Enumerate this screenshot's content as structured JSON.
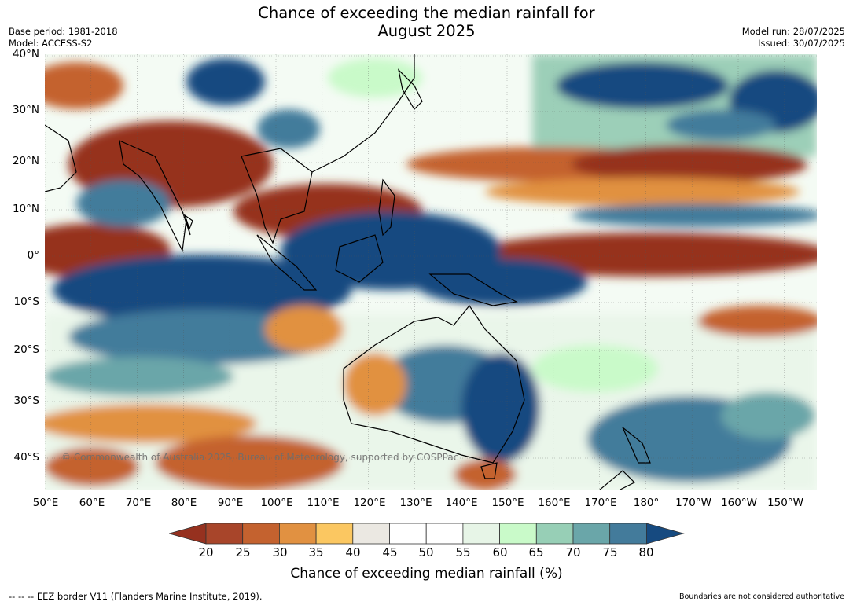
{
  "title_line1": "Chance of exceeding the median rainfall for",
  "title_line2": "August 2025",
  "meta_left": [
    "Base period: 1981-2018",
    "Model: ACCESS-S2"
  ],
  "meta_right": [
    "Model run: 28/07/2025",
    "Issued: 30/07/2025"
  ],
  "lat_ticks": [
    "40°N",
    "30°N",
    "20°N",
    "10°N",
    "0°",
    "10°S",
    "20°S",
    "30°S",
    "40°S"
  ],
  "lon_ticks": [
    "50°E",
    "60°E",
    "70°E",
    "80°E",
    "90°E",
    "100°E",
    "110°E",
    "120°E",
    "130°E",
    "140°E",
    "150°E",
    "160°E",
    "170°E",
    "180°",
    "170°W",
    "160°W",
    "150°W"
  ],
  "colorbar": {
    "ticks": [
      "20",
      "25",
      "30",
      "35",
      "40",
      "45",
      "50",
      "55",
      "60",
      "65",
      "70",
      "75",
      "80"
    ],
    "colors": [
      "#96311f",
      "#a8452a",
      "#c4622f",
      "#e19141",
      "#fbc761",
      "#ebe8e2",
      "#ffffff",
      "#ffffff",
      "#e7f5e7",
      "#c9fac9",
      "#97cfb6",
      "#6aa6a9",
      "#437b9b",
      "#164a80"
    ],
    "label": "Chance of exceeding median rainfall (%)"
  },
  "copyright": "© Commonwealth of Australia 2025, Bureau of Meteorology, supported by COSPPac",
  "eez_note": "--  --  -- EEZ border V11 (Flanders Marine Institute, 2019).",
  "disclaimer": "Boundaries are not considered authoritative"
}
